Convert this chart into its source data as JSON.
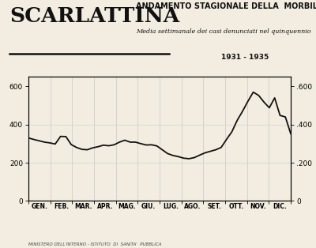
{
  "title_main": "SCARLATTINA",
  "title_sub1": "ANDAMENTO STAGIONALE DELLA  MORBILITA'",
  "title_sub2": "Media settimanale dei casi denunciati nel quinquennio",
  "title_sub3": "1931 - 1935",
  "footer": "MINISTERO DELL'INTERNO - ISTITUTO  DI  SANITA'  PUBBLICA",
  "months": [
    "GEN.",
    "FEB.",
    "MAR.",
    "APR.",
    "MAG.",
    "GIU.",
    "LUG.",
    "AGO.",
    "SET.",
    "OTT.",
    "NOV.",
    "DIC."
  ],
  "ylim": [
    0,
    650
  ],
  "yticks": [
    0,
    200,
    400,
    600
  ],
  "background_color": "#f2ede0",
  "plot_bg": "#f2ede0",
  "line_color": "#111111",
  "grid_color": "#cccccc",
  "y_data": [
    330,
    322,
    315,
    308,
    304,
    298,
    338,
    337,
    295,
    280,
    270,
    268,
    278,
    284,
    292,
    289,
    294,
    308,
    318,
    308,
    308,
    300,
    293,
    294,
    288,
    268,
    248,
    238,
    232,
    224,
    221,
    227,
    240,
    252,
    260,
    268,
    280,
    322,
    362,
    422,
    470,
    522,
    570,
    553,
    518,
    488,
    540,
    448,
    440,
    352
  ]
}
